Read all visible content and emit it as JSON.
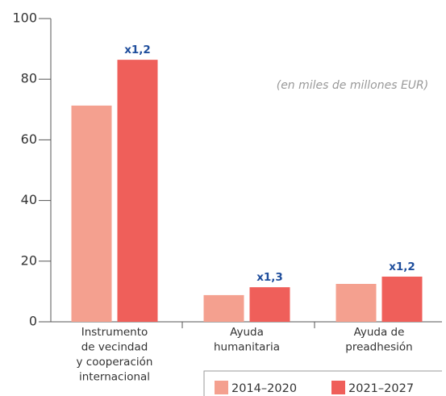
{
  "chart_data": {
    "type": "bar",
    "subtitle": "(en miles de millones EUR)",
    "categories": [
      [
        "Instrumento",
        "de vecindad",
        "y cooperación",
        "internacional"
      ],
      [
        "Ayuda",
        "humanitaria"
      ],
      [
        "Ayuda de",
        "preadhesión"
      ]
    ],
    "series": [
      {
        "name": "2014–2020",
        "color": "#f4a08f",
        "values": [
          71.3,
          8.8,
          12.5
        ]
      },
      {
        "name": "2021–2027",
        "color": "#ef5f5a",
        "values": [
          86.4,
          11.4,
          14.9
        ],
        "annotations": [
          "x1,2",
          "x1,3",
          "x1,2"
        ]
      }
    ],
    "ylim": [
      0,
      100
    ],
    "yticks": [
      0,
      20,
      40,
      60,
      80,
      100
    ]
  }
}
